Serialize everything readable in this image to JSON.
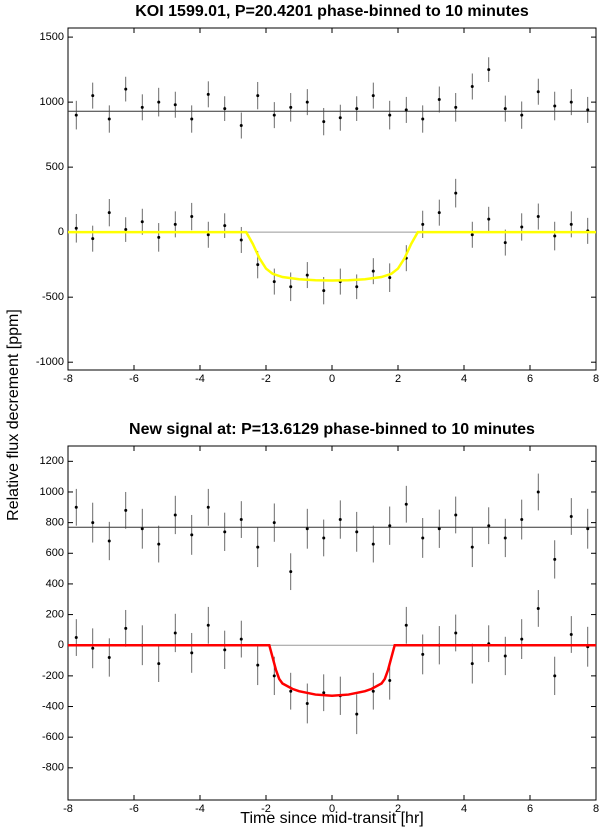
{
  "ylabel": "Relative flux decrement [ppm]",
  "xlabel": "Time since mid-transit [hr]",
  "chart_data": [
    {
      "type": "errorbar",
      "title": "KOI 1599.01, P=20.4201 phase-binned to 10 minutes",
      "xlim": [
        -8,
        8
      ],
      "xticks": [
        -8,
        -6,
        -4,
        -2,
        0,
        2,
        4,
        6,
        8
      ],
      "ylim": [
        -1060,
        1570
      ],
      "yticks": [
        -1000,
        -500,
        0,
        500,
        1000,
        1500
      ],
      "x": [
        -7.75,
        -7.25,
        -6.75,
        -6.25,
        -5.75,
        -5.25,
        -4.75,
        -4.25,
        -3.75,
        -3.25,
        -2.75,
        -2.25,
        -1.75,
        -1.25,
        -0.75,
        -0.25,
        0.25,
        0.75,
        1.25,
        1.75,
        2.25,
        2.75,
        3.25,
        3.75,
        4.25,
        4.75,
        5.25,
        5.75,
        6.25,
        6.75,
        7.25,
        7.75
      ],
      "series": [
        {
          "color": "#000000",
          "values": [
            900,
            1050,
            870,
            1100,
            960,
            1000,
            980,
            870,
            1060,
            950,
            820,
            1050,
            900,
            960,
            1000,
            850,
            880,
            950,
            1050,
            900,
            940,
            870,
            1020,
            960,
            1120,
            1250,
            950,
            900,
            1080,
            970,
            1000,
            940
          ],
          "errors": [
            110,
            100,
            105,
            95,
            100,
            110,
            100,
            105,
            100,
            95,
            100,
            105,
            100,
            110,
            100,
            105,
            100,
            95,
            100,
            110,
            100,
            105,
            100,
            110,
            100,
            95,
            100,
            105,
            100,
            110,
            100,
            100
          ]
        },
        {
          "color": "#000000",
          "values": [
            30,
            -50,
            150,
            20,
            80,
            -40,
            60,
            120,
            -20,
            50,
            -60,
            -250,
            -380,
            -420,
            -330,
            -450,
            -380,
            -420,
            -300,
            -350,
            -200,
            60,
            150,
            300,
            -20,
            100,
            -80,
            40,
            120,
            -30,
            60,
            10
          ],
          "errors": [
            110,
            100,
            105,
            95,
            100,
            110,
            100,
            105,
            100,
            95,
            100,
            105,
            100,
            110,
            100,
            105,
            100,
            95,
            100,
            110,
            100,
            105,
            100,
            110,
            100,
            95,
            100,
            105,
            100,
            110,
            100,
            100
          ]
        }
      ],
      "hlines": [
        930,
        0
      ],
      "hline_colors": [
        "#333333",
        "#999999"
      ],
      "model": {
        "color": "#ffff00",
        "x": [
          -8,
          -2.6,
          -2.4,
          -2.2,
          -2,
          -1.8,
          -1.5,
          -1,
          -0.5,
          0,
          0.5,
          1,
          1.5,
          1.8,
          2,
          2.2,
          2.4,
          2.6,
          8
        ],
        "values": [
          0,
          0,
          -90,
          -200,
          -280,
          -320,
          -345,
          -362,
          -370,
          -372,
          -370,
          -362,
          -345,
          -320,
          -280,
          -200,
          -90,
          0,
          0
        ]
      }
    },
    {
      "type": "errorbar",
      "title": "New signal at: P=13.6129 phase-binned to 10 minutes",
      "xlim": [
        -8,
        8
      ],
      "xticks": [
        -8,
        -6,
        -4,
        -2,
        0,
        2,
        4,
        6,
        8
      ],
      "ylim": [
        -1010,
        1300
      ],
      "yticks": [
        -800,
        -600,
        -400,
        -200,
        0,
        200,
        400,
        600,
        800,
        1000,
        1200
      ],
      "x": [
        -7.75,
        -7.25,
        -6.75,
        -6.25,
        -5.75,
        -5.25,
        -4.75,
        -4.25,
        -3.75,
        -3.25,
        -2.75,
        -2.25,
        -1.75,
        -1.25,
        -0.75,
        -0.25,
        0.25,
        0.75,
        1.25,
        1.75,
        2.25,
        2.75,
        3.25,
        3.75,
        4.25,
        4.75,
        5.25,
        5.75,
        6.25,
        6.75,
        7.25,
        7.75
      ],
      "series": [
        {
          "color": "#000000",
          "values": [
            900,
            800,
            680,
            880,
            760,
            660,
            850,
            720,
            900,
            740,
            820,
            640,
            800,
            480,
            760,
            700,
            820,
            740,
            660,
            780,
            920,
            700,
            760,
            850,
            640,
            780,
            700,
            820,
            1000,
            560,
            840,
            760
          ],
          "errors": [
            120,
            130,
            125,
            120,
            130,
            120,
            125,
            130,
            120,
            125,
            120,
            130,
            125,
            120,
            130,
            120,
            125,
            130,
            120,
            125,
            120,
            130,
            125,
            120,
            130,
            120,
            125,
            130,
            120,
            125,
            120,
            130
          ]
        },
        {
          "color": "#000000",
          "values": [
            50,
            -20,
            -80,
            110,
            0,
            -120,
            80,
            -50,
            130,
            -30,
            40,
            -130,
            -200,
            -300,
            -380,
            -310,
            -330,
            -450,
            -300,
            -230,
            130,
            -60,
            0,
            80,
            -120,
            10,
            -70,
            40,
            240,
            -200,
            70,
            -10
          ],
          "errors": [
            120,
            130,
            125,
            120,
            130,
            120,
            125,
            130,
            120,
            125,
            120,
            130,
            125,
            120,
            130,
            120,
            125,
            130,
            120,
            125,
            120,
            130,
            125,
            120,
            130,
            120,
            125,
            130,
            120,
            125,
            120,
            130
          ]
        }
      ],
      "hlines": [
        770,
        0
      ],
      "hline_colors": [
        "#333333",
        "#999999"
      ],
      "model": {
        "color": "#ff0000",
        "x": [
          -8,
          -1.9,
          -1.8,
          -1.7,
          -1.6,
          -1.5,
          -1.2,
          -1,
          -0.5,
          0,
          0.5,
          1,
          1.2,
          1.5,
          1.6,
          1.7,
          1.8,
          1.9,
          8
        ],
        "values": [
          0,
          0,
          -80,
          -160,
          -220,
          -250,
          -285,
          -300,
          -322,
          -330,
          -322,
          -300,
          -285,
          -250,
          -220,
          -160,
          -80,
          0,
          0
        ]
      }
    }
  ]
}
